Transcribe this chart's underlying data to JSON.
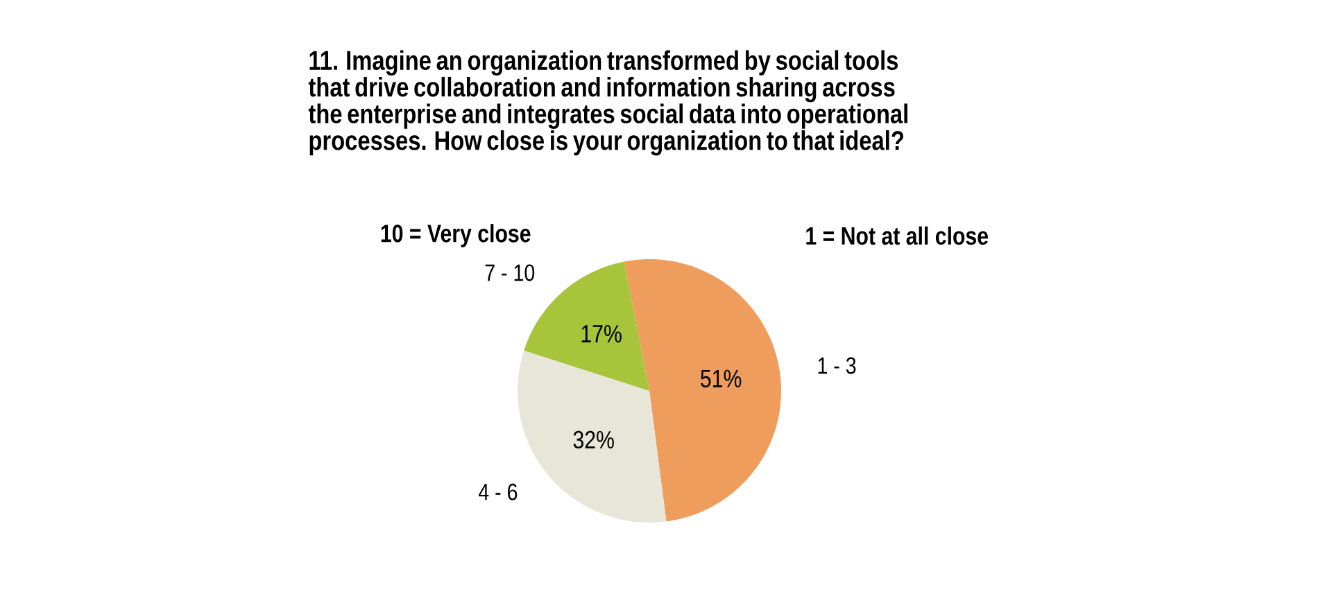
{
  "chart_data": {
    "type": "pie",
    "title": "11. Imagine an organization transformed by social tools that drive collaboration and information sharing across the enterprise and integrates social data into operational processes. How close is your organization to that ideal?",
    "categories": [
      "1 - 3",
      "4 - 6",
      "7 - 10"
    ],
    "values": [
      51,
      32,
      17
    ],
    "colors": [
      "#ee9d5c",
      "#e8e6d8",
      "#a8c43a"
    ],
    "value_labels": [
      "51%",
      "32%",
      "17%"
    ],
    "annotations": [
      "10 = Very close",
      "1 = Not at all close"
    ]
  }
}
